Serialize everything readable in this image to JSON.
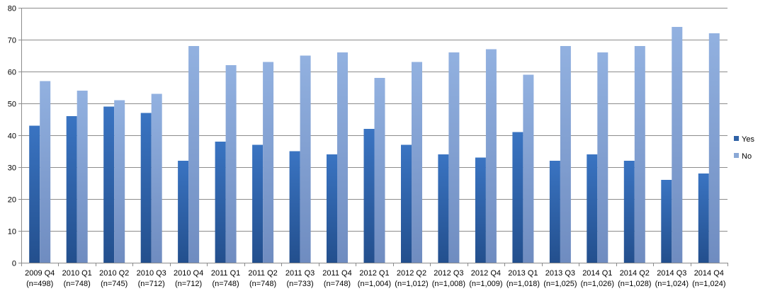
{
  "chart_data": {
    "type": "bar",
    "categories": [
      [
        "2009 Q4",
        "(n=498)"
      ],
      [
        "2010 Q1",
        "(n=748)"
      ],
      [
        "2010 Q2",
        "(n=745)"
      ],
      [
        "2010 Q3",
        "(n=712)"
      ],
      [
        "2010 Q4",
        "(n=712)"
      ],
      [
        "2011 Q1",
        "(n=748)"
      ],
      [
        "2011 Q2",
        "(n=748)"
      ],
      [
        "2011 Q3",
        "(n=733)"
      ],
      [
        "2011 Q4",
        "(n=748)"
      ],
      [
        "2012 Q1",
        "(n=1,004)"
      ],
      [
        "2012 Q2",
        "(n=1,012)"
      ],
      [
        "2012 Q3",
        "(n=1,008)"
      ],
      [
        "2012 Q4",
        "(n=1,009)"
      ],
      [
        "2013 Q1",
        "(n=1,018)"
      ],
      [
        "2013 Q3",
        "(n=1,025)"
      ],
      [
        "2014 Q1",
        "(n=1,026)"
      ],
      [
        "2014 Q2",
        "(n=1,028)"
      ],
      [
        "2014 Q3",
        "(n=1,024)"
      ],
      [
        "2014 Q4",
        "(n=1,024)"
      ]
    ],
    "series": [
      {
        "name": "Yes",
        "color": "#2f62a6",
        "values": [
          43,
          46,
          49,
          47,
          32,
          38,
          37,
          35,
          34,
          42,
          37,
          34,
          33,
          41,
          32,
          34,
          32,
          26,
          28
        ]
      },
      {
        "name": "No",
        "color": "#8aa8d6",
        "values": [
          57,
          54,
          51,
          53,
          68,
          62,
          63,
          65,
          66,
          58,
          63,
          66,
          67,
          59,
          68,
          66,
          68,
          74,
          72
        ]
      }
    ],
    "ylim": [
      0,
      80
    ],
    "yticks": [
      0,
      10,
      20,
      30,
      40,
      50,
      60,
      70,
      80
    ],
    "grid": true,
    "legend_position": "right"
  }
}
